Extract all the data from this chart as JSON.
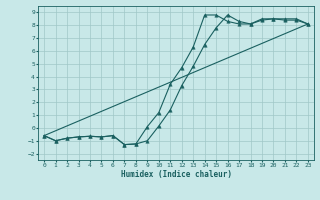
{
  "xlabel": "Humidex (Indice chaleur)",
  "bg_color": "#c8e8e8",
  "grid_color": "#a0c8c8",
  "line_color": "#1a6060",
  "xlim": [
    -0.5,
    23.5
  ],
  "ylim": [
    -2.5,
    9.5
  ],
  "xticks": [
    0,
    1,
    2,
    3,
    4,
    5,
    6,
    7,
    8,
    9,
    10,
    11,
    12,
    13,
    14,
    15,
    16,
    17,
    18,
    19,
    20,
    21,
    22,
    23
  ],
  "yticks": [
    -2,
    -1,
    0,
    1,
    2,
    3,
    4,
    5,
    6,
    7,
    8,
    9
  ],
  "line1_x": [
    0,
    1,
    2,
    3,
    4,
    5,
    6,
    7,
    8,
    9,
    10,
    11,
    12,
    13,
    14,
    15,
    16,
    17,
    18,
    19,
    20,
    21,
    22,
    23
  ],
  "line1_y": [
    -0.6,
    -1.0,
    -0.8,
    -0.7,
    -0.65,
    -0.7,
    -0.6,
    -1.3,
    -1.25,
    -1.0,
    0.15,
    1.4,
    3.3,
    4.8,
    6.5,
    7.8,
    8.8,
    8.3,
    8.1,
    8.4,
    8.5,
    8.5,
    8.5,
    8.1
  ],
  "line2_x": [
    0,
    1,
    2,
    3,
    4,
    5,
    6,
    7,
    8,
    9,
    10,
    11,
    12,
    13,
    14,
    15,
    16,
    17,
    18,
    19,
    20,
    21,
    22,
    23
  ],
  "line2_y": [
    -0.6,
    -1.0,
    -0.8,
    -0.7,
    -0.65,
    -0.7,
    -0.6,
    -1.3,
    -1.25,
    0.1,
    1.2,
    3.4,
    4.7,
    6.3,
    8.8,
    8.8,
    8.3,
    8.1,
    8.1,
    8.5,
    8.5,
    8.4,
    8.4,
    8.1
  ],
  "line3_x": [
    0,
    23
  ],
  "line3_y": [
    -0.6,
    8.1
  ],
  "marker": "^",
  "marker_size": 2.5,
  "linewidth": 0.8
}
